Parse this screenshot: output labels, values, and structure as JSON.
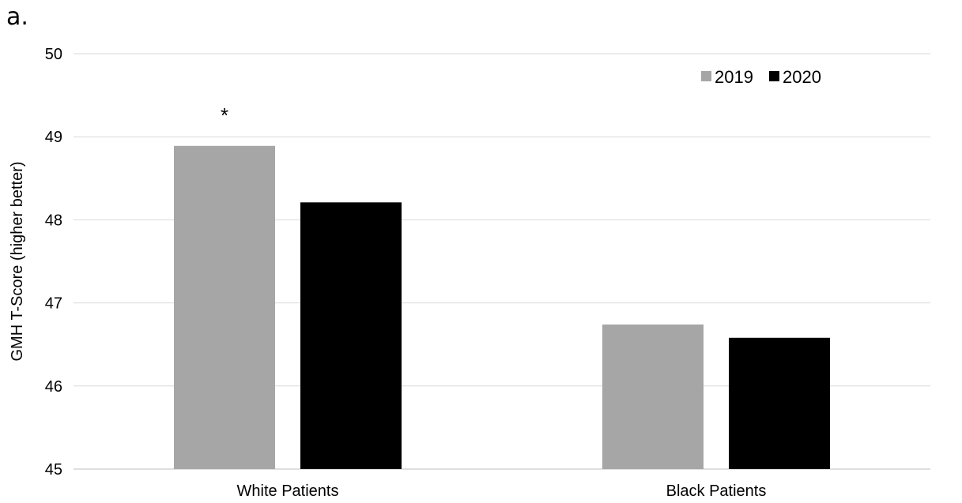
{
  "panel_label": "a.",
  "chart_data": {
    "type": "bar",
    "categories": [
      "White Patients",
      "Black Patients"
    ],
    "series": [
      {
        "name": "2019",
        "values": [
          48.89,
          46.74
        ],
        "color": "#a6a6a6"
      },
      {
        "name": "2020",
        "values": [
          48.21,
          46.58
        ],
        "color": "#000000"
      }
    ],
    "ylabel": "GMH T-Score (higher better)",
    "xlabel": "",
    "ylim": [
      45,
      50
    ],
    "yticks": [
      45,
      46,
      47,
      48,
      49,
      50
    ],
    "grid": true,
    "legend_position": "top-right",
    "annotations": [
      {
        "text": "*",
        "category": "White Patients",
        "series": "2019"
      }
    ]
  }
}
